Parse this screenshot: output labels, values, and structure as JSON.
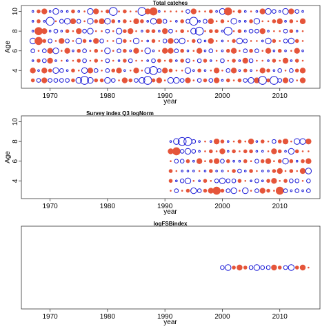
{
  "colors": {
    "positive": "#e5553a",
    "negative": "#1a1ad6",
    "frame": "#333333"
  },
  "chart_data": [
    {
      "type": "scatter",
      "subtype": "bubble-residuals",
      "title": "Total catches",
      "xlabel": "year",
      "ylabel": "Age",
      "xlim": [
        1965,
        2017
      ],
      "ylim": [
        2.2,
        10.6
      ],
      "xticks": [
        1970,
        1980,
        1990,
        2000,
        2010
      ],
      "yticks": [
        4,
        6,
        8,
        10
      ],
      "grid": false,
      "legend": "none",
      "years": [
        1967,
        2014
      ],
      "ages": [
        3,
        10
      ],
      "residuals": {
        "10": [
          -1,
          2,
          3,
          -1,
          -3,
          -1,
          -1,
          2,
          -1,
          1,
          -3,
          3,
          1,
          2,
          -4,
          1,
          2,
          1,
          1,
          -4,
          3,
          4,
          -1,
          1,
          1,
          1,
          1,
          -2,
          3,
          1,
          1,
          2,
          -1,
          -3,
          4,
          1,
          2,
          -1,
          1,
          -1,
          3,
          -3,
          -2,
          -1,
          -3,
          3,
          -2,
          -1
        ],
        "9": [
          -1,
          2,
          -1,
          -4,
          1,
          -2,
          -3,
          3,
          -2,
          1,
          -3,
          2,
          3,
          -3,
          2,
          -1,
          2,
          1,
          3,
          2,
          -1,
          -3,
          3,
          -2,
          1,
          -1,
          2,
          -2,
          -4,
          -1,
          -2,
          3,
          1,
          2,
          1,
          -3,
          -1,
          -1,
          2,
          -3,
          1,
          1,
          2,
          3,
          -1,
          2,
          1,
          3
        ],
        "8": [
          -1,
          4,
          3,
          -1,
          -2,
          -1,
          2,
          1,
          3,
          -2,
          -3,
          1,
          1,
          -2,
          1,
          -3,
          2,
          3,
          1,
          -1,
          2,
          2,
          -1,
          3,
          -2,
          1,
          2,
          1,
          -3,
          -4,
          1,
          2,
          2,
          -1,
          -4,
          1,
          2,
          -1,
          -2,
          -2,
          3,
          -1,
          1,
          1,
          -2,
          2,
          -1,
          1
        ],
        "7": [
          -3,
          4,
          2,
          -2,
          1,
          3,
          -2,
          1,
          -3,
          2,
          -1,
          3,
          -2,
          1,
          1,
          -3,
          2,
          1,
          -3,
          1,
          -1,
          2,
          1,
          -2,
          3,
          -2,
          -3,
          1,
          2,
          -2,
          -1,
          3,
          1,
          -1,
          1,
          2,
          -3,
          -2,
          1,
          1,
          -1,
          -3,
          2,
          1,
          -2,
          -3,
          2,
          1
        ],
        "6": [
          -2,
          1,
          -2,
          3,
          -3,
          1,
          3,
          -1,
          2,
          -2,
          1,
          2,
          1,
          -3,
          1,
          -2,
          2,
          -1,
          3,
          1,
          -3,
          -1,
          1,
          3,
          3,
          -2,
          2,
          -1,
          1,
          3,
          -1,
          -2,
          1,
          -1,
          2,
          3,
          1,
          -2,
          2,
          -2,
          1,
          3,
          -1,
          2,
          -1,
          1,
          3,
          -1
        ],
        "5": [
          -1,
          2,
          -2,
          3,
          -1,
          1,
          -1,
          1,
          2,
          -2,
          1,
          2,
          1,
          -2,
          1,
          -1,
          2,
          -2,
          1,
          1,
          -1,
          -2,
          2,
          1,
          2,
          -1,
          2,
          -2,
          1,
          -2,
          2,
          -1,
          1,
          -2,
          1,
          2,
          -1,
          3,
          -2,
          1,
          1,
          -1,
          2,
          1,
          3,
          -1,
          2,
          1
        ],
        "4": [
          3,
          -1,
          3,
          2,
          -3,
          -2,
          -1,
          2,
          1,
          -3,
          3,
          -2,
          1,
          -2,
          2,
          3,
          -1,
          1,
          3,
          1,
          -3,
          -4,
          -2,
          3,
          2,
          1,
          1,
          -3,
          -1,
          2,
          -1,
          1,
          3,
          1,
          -2,
          3,
          -1,
          2,
          -1,
          1,
          3,
          2,
          -1,
          -2,
          1,
          -2,
          2,
          3
        ],
        "3": [
          2,
          -2,
          3,
          -2,
          -2,
          -2,
          -2,
          2,
          -3,
          -4,
          -3,
          2,
          2,
          -3,
          -2,
          1,
          3,
          2,
          -2,
          -3,
          -4,
          2,
          3,
          1,
          -3,
          -3,
          -2,
          3,
          1,
          -2,
          2,
          -2,
          3,
          -1,
          2,
          1,
          2,
          -2,
          -3,
          3,
          -4,
          2,
          -4,
          -2,
          3,
          -2,
          1,
          3
        ]
      }
    },
    {
      "type": "scatter",
      "subtype": "bubble-residuals",
      "title": "Survey index Q3 logNorm",
      "xlabel": "year",
      "ylabel": "Age",
      "xlim": [
        1965,
        2017
      ],
      "ylim": [
        2.2,
        10.6
      ],
      "xticks": [
        1970,
        1980,
        1990,
        2000,
        2010
      ],
      "yticks": [
        4,
        6,
        8,
        10
      ],
      "grid": false,
      "legend": "none",
      "years": [
        1991,
        2015
      ],
      "ages": [
        3,
        8
      ],
      "residuals": {
        "8": [
          -1,
          -3,
          -4,
          -4,
          -2,
          -1,
          1,
          -1,
          3,
          2,
          -1,
          1,
          2,
          1,
          3,
          -1,
          2,
          1,
          -2,
          2,
          3,
          1,
          -3,
          -3,
          3
        ],
        "7": [
          3,
          4,
          -2,
          -3,
          -2,
          -1,
          1,
          2,
          1,
          3,
          -1,
          2,
          1,
          2,
          2,
          -1,
          -1,
          1,
          3,
          2,
          -1,
          -3,
          2,
          1,
          1
        ],
        "6": [
          1,
          -2,
          -2,
          2,
          -1,
          3,
          1,
          2,
          3,
          -2,
          2,
          -1,
          -1,
          2,
          1,
          -2,
          2,
          3,
          1,
          2,
          -3,
          2,
          -1,
          2,
          3
        ],
        "5": [
          2,
          1,
          -1,
          -1,
          -1,
          1,
          -1,
          2,
          -1,
          -1,
          1,
          2,
          -2,
          -1,
          2,
          1,
          -1,
          -1,
          2,
          3,
          1,
          2,
          1,
          3,
          -3
        ],
        "4": [
          2,
          -1,
          -2,
          -3,
          1,
          -1,
          2,
          1,
          -2,
          -3,
          -2,
          -2,
          2,
          1,
          -1,
          -2,
          -1,
          2,
          3,
          1,
          2,
          -2,
          -2,
          1,
          -2
        ],
        "3": [
          1,
          -2,
          1,
          2,
          -3,
          -2,
          2,
          3,
          4,
          2,
          -2,
          -3,
          1,
          -3,
          1,
          -2,
          3,
          2,
          1,
          4,
          -2,
          -1,
          -2,
          -1,
          -2
        ]
      }
    },
    {
      "type": "scatter",
      "subtype": "bubble-residuals",
      "title": "logFSBindex",
      "xlabel": "year",
      "ylabel": "",
      "xlim": [
        1965,
        2017
      ],
      "ylim": [
        0,
        10
      ],
      "xticks": [
        1970,
        1980,
        1990,
        2000,
        2010
      ],
      "yticks": [],
      "grid": false,
      "legend": "none",
      "years": [
        2000,
        2015
      ],
      "level": 5,
      "residuals": [
        -2,
        -3,
        2,
        3,
        2,
        -2,
        -3,
        -2,
        -2,
        3,
        2,
        -2,
        -3,
        2,
        3,
        1
      ]
    }
  ]
}
